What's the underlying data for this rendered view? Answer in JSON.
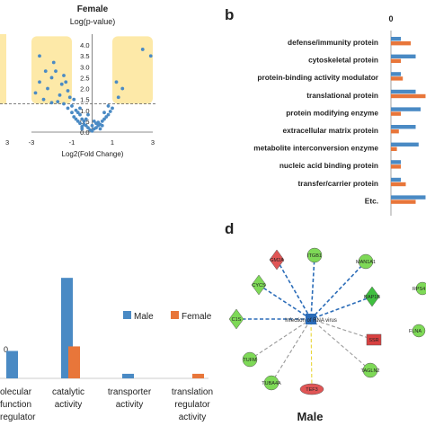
{
  "panels": {
    "b": "b",
    "d": "d"
  },
  "chart_data": [
    {
      "type": "scatter",
      "panel": "volcano-female",
      "title": "Female",
      "ylabel": "Log(p-value)",
      "xlabel": "Log2(Fold Change)",
      "xlim": [
        -3,
        3
      ],
      "ylim": [
        0,
        4.5
      ],
      "xticks": [
        "-3",
        "-1",
        "1",
        "3"
      ],
      "yticks": [
        "0.0",
        "0.5",
        "1.0",
        "1.5",
        "2.0",
        "2.5",
        "3.0",
        "3.5",
        "4.0"
      ],
      "left_partial_xtick": "3",
      "threshold_y": 1.3,
      "highlight_color": "#fde9a8",
      "point_color": "#4a8ac4",
      "points": [
        [
          -2.6,
          3.5
        ],
        [
          -2.0,
          2.5
        ],
        [
          -1.8,
          2.8
        ],
        [
          -1.5,
          2.2
        ],
        [
          -2.2,
          2.0
        ],
        [
          -1.3,
          2.3
        ],
        [
          -1.6,
          1.7
        ],
        [
          -2.4,
          1.5
        ],
        [
          -1.2,
          1.9
        ],
        [
          -1.1,
          1.6
        ],
        [
          -0.9,
          1.5
        ],
        [
          -1.0,
          1.2
        ],
        [
          -0.8,
          1.0
        ],
        [
          -1.2,
          1.1
        ],
        [
          -0.7,
          0.9
        ],
        [
          -0.6,
          0.8
        ],
        [
          -0.9,
          0.7
        ],
        [
          -0.5,
          0.6
        ],
        [
          -0.4,
          0.5
        ],
        [
          -0.6,
          0.4
        ],
        [
          -0.3,
          0.3
        ],
        [
          -0.2,
          0.2
        ],
        [
          -0.5,
          0.25
        ],
        [
          -0.1,
          0.1
        ],
        [
          0.0,
          0.05
        ],
        [
          0.1,
          0.15
        ],
        [
          0.2,
          0.2
        ],
        [
          0.3,
          0.3
        ],
        [
          0.4,
          0.35
        ],
        [
          0.5,
          0.5
        ],
        [
          0.6,
          0.6
        ],
        [
          0.7,
          0.7
        ],
        [
          0.8,
          0.8
        ],
        [
          0.9,
          0.95
        ],
        [
          1.0,
          1.1
        ],
        [
          0.8,
          1.2
        ],
        [
          -0.3,
          0.6
        ],
        [
          -0.7,
          0.5
        ],
        [
          0.3,
          0.45
        ],
        [
          0.5,
          0.3
        ],
        [
          0.2,
          0.4
        ],
        [
          -0.4,
          0.35
        ],
        [
          -0.8,
          0.6
        ],
        [
          -1.0,
          0.9
        ],
        [
          0.6,
          0.9
        ],
        [
          -0.2,
          0.8
        ],
        [
          0.1,
          0.5
        ],
        [
          -0.6,
          1.1
        ],
        [
          -1.4,
          1.3
        ],
        [
          -1.7,
          1.4
        ],
        [
          -2.0,
          1.35
        ],
        [
          -0.5,
          0.15
        ],
        [
          0.4,
          0.15
        ],
        [
          0.0,
          0.3
        ],
        [
          1.2,
          2.3
        ],
        [
          1.5,
          2.0
        ],
        [
          2.5,
          3.8
        ],
        [
          2.9,
          3.5
        ],
        [
          1.3,
          1.6
        ],
        [
          -2.3,
          2.8
        ],
        [
          -1.9,
          3.2
        ],
        [
          -1.4,
          2.6
        ],
        [
          -2.6,
          2.3
        ],
        [
          -2.8,
          1.8
        ]
      ]
    },
    {
      "type": "bar",
      "panel": "b",
      "orientation": "horizontal",
      "top_tick": "0",
      "categories": [
        "defense/immunity protein",
        "cytoskeletal protein",
        "protein-binding activity modulator",
        "translational protein",
        "protein modifying enzyme",
        "extracellular matrix protein",
        "metabolite interconversion enzyme",
        "nucleic acid binding protein",
        "transfer/carrier protein",
        "Etc."
      ],
      "series": [
        {
          "color": "#4a8ac4",
          "values": [
            1.0,
            2.5,
            1.0,
            2.5,
            3.0,
            2.5,
            2.8,
            1.0,
            1.0,
            3.5
          ]
        },
        {
          "color": "#e8763a",
          "values": [
            2.0,
            1.0,
            1.2,
            3.5,
            1.0,
            0.8,
            0.6,
            1.0,
            1.5,
            2.5
          ]
        }
      ]
    },
    {
      "type": "bar",
      "panel": "c",
      "categories": [
        "olecular\nfunction\nregulator",
        "catalytic\nactivity",
        "transporter\nactivity",
        "translation\nregulator\nactivity"
      ],
      "series": [
        {
          "name": "Male",
          "color": "#4a8ac4",
          "values": [
            3,
            11,
            0.5,
            0
          ]
        },
        {
          "name": "Female",
          "color": "#e8763a",
          "values": [
            0,
            3.5,
            0,
            0.5
          ]
        }
      ],
      "ylim": [
        0,
        12
      ]
    }
  ],
  "network": {
    "title": "Male",
    "hub_label": "Infection of RNA virus",
    "nodes": [
      {
        "label": "GM2A",
        "shape": "diamond",
        "color": "#e05555"
      },
      {
        "label": "ITGB1",
        "shape": "ellipse",
        "color": "#7ed957"
      },
      {
        "label": "MAN1A1",
        "shape": "ellipse",
        "color": "#7ed957"
      },
      {
        "label": "CYCS",
        "shape": "diamond",
        "color": "#7ed957"
      },
      {
        "label": "RAP1B",
        "shape": "diamond",
        "color": "#3fbf3f"
      },
      {
        "label": "C1S",
        "shape": "diamond",
        "color": "#7ed957"
      },
      {
        "label": "SSR",
        "shape": "box",
        "color": "#d94040"
      },
      {
        "label": "TUFM",
        "shape": "ellipse",
        "color": "#7ed957"
      },
      {
        "label": "TAGLN2",
        "shape": "ellipse",
        "color": "#7ed957"
      },
      {
        "label": "TUBA4A",
        "shape": "ellipse",
        "color": "#7ed957"
      },
      {
        "label": "TEF3",
        "shape": "ellipse",
        "color": "#e05555"
      }
    ],
    "edge_colors": {
      "blue": "#2b6cb8",
      "gray": "#999999",
      "yellow": "#e8d63a"
    },
    "partial_nodes": [
      {
        "label": "RPS4",
        "color": "#7ed957"
      },
      {
        "label": "FLNA",
        "color": "#7ed957"
      }
    ]
  },
  "left_partial": {
    "ticks": [
      "3",
      "0"
    ]
  }
}
